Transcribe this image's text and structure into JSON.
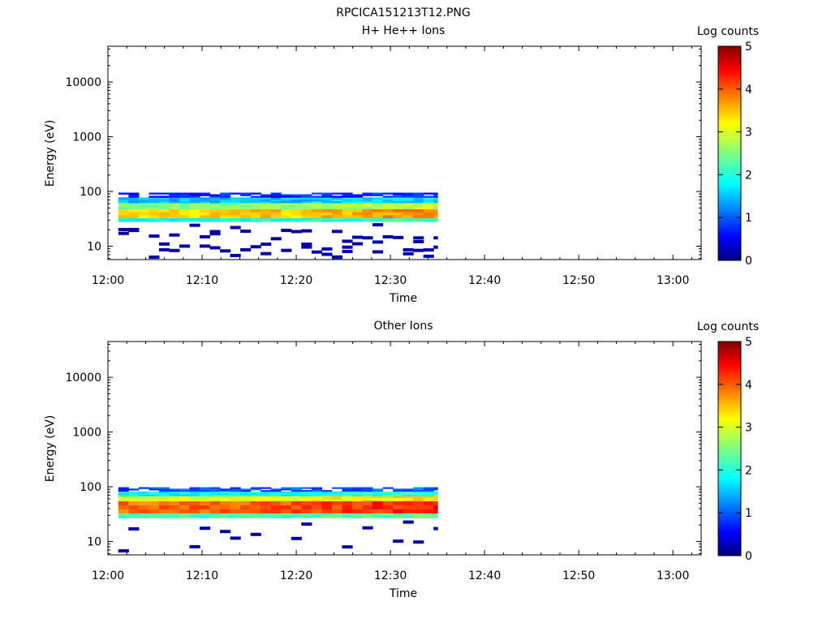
{
  "figure_title": "RPCICA151213T12.PNG",
  "chart_data": [
    {
      "type": "heatmap",
      "title": "H+ He++ Ions",
      "xlabel": "Time",
      "ylabel": "Energy (eV)",
      "x_ticks": [
        "12:00",
        "12:10",
        "12:20",
        "12:30",
        "12:40",
        "12:50",
        "13:00"
      ],
      "y_ticks": [
        "10",
        "100",
        "1000",
        "10000"
      ],
      "y_scale": "log",
      "x_range_min": [
        0,
        63
      ],
      "y_range_eV": [
        5.7,
        45000
      ],
      "colorbar": {
        "label": "Log counts",
        "ticks": [
          "0",
          "1",
          "2",
          "3",
          "4",
          "5"
        ],
        "range": [
          0,
          5
        ]
      },
      "data_extent_min": [
        1.1,
        35
      ],
      "energy_band_eV": [
        {
          "range": [
            28,
            33
          ],
          "log_counts": 2.0
        },
        {
          "range": [
            33,
            48
          ],
          "log_counts": 3.4
        },
        {
          "range": [
            48,
            62
          ],
          "log_counts": 2.6
        },
        {
          "range": [
            62,
            78
          ],
          "log_counts": 1.6
        },
        {
          "range": [
            78,
            95
          ],
          "log_counts": 0.8
        }
      ],
      "peak_log_counts_by_time": {
        "12:00": 3.2,
        "12:10": 3.3,
        "12:20": 3.4,
        "12:30": 3.6,
        "12:35": 3.7
      },
      "note_sparse_low_energy_pixels": true
    },
    {
      "type": "heatmap",
      "title": "Other Ions",
      "xlabel": "Time",
      "ylabel": "Energy (eV)",
      "x_ticks": [
        "12:00",
        "12:10",
        "12:20",
        "12:30",
        "12:40",
        "12:50",
        "13:00"
      ],
      "y_ticks": [
        "10",
        "100",
        "1000",
        "10000"
      ],
      "y_scale": "log",
      "x_range_min": [
        0,
        63
      ],
      "y_range_eV": [
        5.7,
        45000
      ],
      "colorbar": {
        "label": "Log counts",
        "ticks": [
          "0",
          "1",
          "2",
          "3",
          "4",
          "5"
        ],
        "range": [
          0,
          5
        ]
      },
      "data_extent_min": [
        1.1,
        35
      ],
      "energy_band_eV": [
        {
          "range": [
            27,
            33
          ],
          "log_counts": 2.2
        },
        {
          "range": [
            33,
            55
          ],
          "log_counts": 3.9
        },
        {
          "range": [
            55,
            68
          ],
          "log_counts": 3.0
        },
        {
          "range": [
            68,
            82
          ],
          "log_counts": 1.9
        },
        {
          "range": [
            82,
            98
          ],
          "log_counts": 1.0
        }
      ],
      "peak_log_counts_by_time": {
        "12:00": 3.8,
        "12:10": 3.9,
        "12:20": 4.0,
        "12:30": 4.2,
        "12:35": 4.3
      },
      "note_sparse_low_energy_pixels": true
    }
  ]
}
